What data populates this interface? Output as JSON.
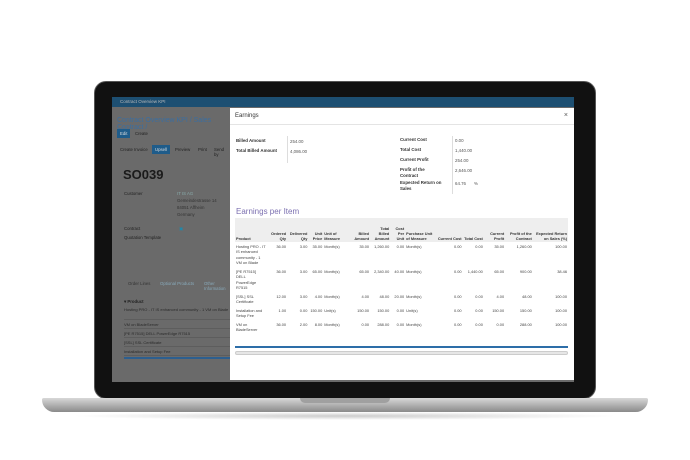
{
  "app": {
    "topbar": "Contract Overview KPI",
    "breadcrumb": "Contract Overview KPI / Sales Contract /",
    "edit": "Edit",
    "create": "Create",
    "actions": [
      "Create Invoice",
      "Upsell",
      "Preview",
      "Print",
      "Send by"
    ],
    "order": "SO039",
    "customer_label": "Customer",
    "customer": [
      "IT IS AG",
      "Gemeindestrasse 14",
      "84051 Affheim",
      "Germany"
    ],
    "contract_label": "Contract",
    "quotation_label": "Quotation Template",
    "tabs": [
      "Order Lines",
      "Optional Products",
      "Other Information"
    ],
    "product_header": "Product",
    "desc_header": "Des",
    "lines": [
      "Hosting PRO - IT IS enhanced community - 1 VM on Blade",
      "VM on BladeServer",
      "[PE R7515] DELL PowerEdge R7515",
      "[SSL] SSL Certificate",
      "Installation and Setup Fee"
    ]
  },
  "modal": {
    "title": "Earnings",
    "close": "×",
    "left": [
      {
        "label": "Billed Amount",
        "value": "254.00"
      },
      {
        "label": "Total Billed Amount",
        "value": "4,086.00"
      }
    ],
    "right": [
      {
        "label": "Current Cost",
        "value": "0.00"
      },
      {
        "label": "Total Cost",
        "value": "1,440.00"
      },
      {
        "label": "Current Profit",
        "value": "254.00"
      },
      {
        "label": "Profit of the Contract",
        "value": "2,646.00"
      },
      {
        "label": "Expected Return on Sales",
        "value": "64.76",
        "unit": "%"
      }
    ],
    "section": "Earnings per Item",
    "columns": [
      "Product",
      "Ordered Qty",
      "Delivered Qty",
      "Unit Price",
      "Unit of Measure",
      "Billed Amount",
      "Total Billed Amount",
      "Cost Per Unit",
      "Purchase Unit of Measure",
      "Current Cost",
      "Total Cost",
      "Current Profit",
      "Profit of the Contract",
      "Expected Return on Sales (%)"
    ],
    "rows": [
      [
        "Hosting PRO - IT IS enhanced community - 1 VM on Blade",
        "36.00",
        "3.00",
        "35.00",
        "Month(s)",
        "35.00",
        "1,260.00",
        "0.00",
        "Month(s)",
        "0.00",
        "0.00",
        "35.00",
        "1,260.00",
        "100.00"
      ],
      [
        "[PE R7515] DELL PowerEdge R7515",
        "36.00",
        "3.00",
        "65.00",
        "Month(s)",
        "65.00",
        "2,340.00",
        "40.00",
        "Month(s)",
        "0.00",
        "1,440.00",
        "65.00",
        "900.00",
        "38.46"
      ],
      [
        "[SSL] SSL Certificate",
        "12.00",
        "3.00",
        "4.00",
        "Month(s)",
        "4.00",
        "48.00",
        "20.00",
        "Month(s)",
        "0.00",
        "0.00",
        "4.00",
        "48.00",
        "100.00"
      ],
      [
        "Installation and Setup Fee",
        "1.00",
        "0.00",
        "150.00",
        "Unit(s)",
        "150.00",
        "150.00",
        "0.00",
        "Unit(s)",
        "0.00",
        "0.00",
        "150.00",
        "150.00",
        "100.00"
      ],
      [
        "VM on BladeServer",
        "36.00",
        "2.00",
        "8.00",
        "Month(s)",
        "0.00",
        "288.00",
        "0.00",
        "Month(s)",
        "0.00",
        "0.00",
        "0.00",
        "288.00",
        "100.00"
      ]
    ]
  }
}
